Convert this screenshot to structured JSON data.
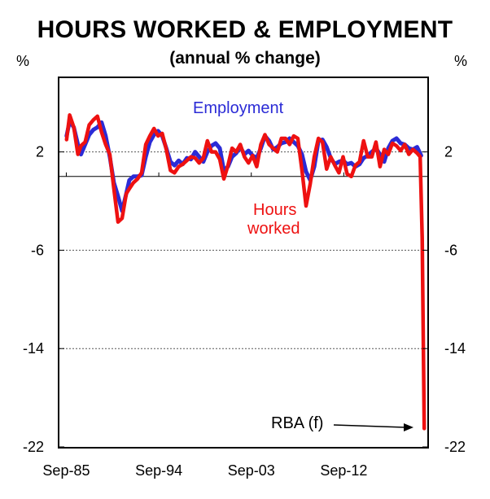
{
  "chart_data": {
    "type": "line",
    "title": "HOURS WORKED & EMPLOYMENT",
    "subtitle": "(annual % change)",
    "ylabel_left": "%",
    "ylabel_right": "%",
    "ylim": [
      -22,
      8
    ],
    "yticks": [
      2,
      -6,
      -14,
      -22
    ],
    "ytick_labels": [
      "2",
      "-6",
      "-14",
      "-22"
    ],
    "xlim": [
      1985.0,
      2020.8
    ],
    "xticks": [
      1985.67,
      1994.67,
      2003.67,
      2012.67
    ],
    "xtick_labels": [
      "Sep-85",
      "Sep-94",
      "Sep-03",
      "Sep-12"
    ],
    "grid": "horizontal dashed",
    "zero_line": 0,
    "series": [
      {
        "name": "Employment",
        "color": "#2b2bd6",
        "x": [
          1985.7,
          1986.0,
          1986.4,
          1986.8,
          1987.1,
          1987.5,
          1987.9,
          1988.3,
          1988.7,
          1989.1,
          1989.5,
          1989.9,
          1990.3,
          1990.7,
          1991.1,
          1991.5,
          1991.8,
          1992.2,
          1992.6,
          1993.0,
          1993.4,
          1993.8,
          1994.2,
          1994.6,
          1995.0,
          1995.4,
          1995.8,
          1996.2,
          1996.6,
          1997.0,
          1997.4,
          1997.8,
          1998.2,
          1998.6,
          1999.0,
          1999.4,
          1999.8,
          2000.2,
          2000.6,
          2001.0,
          2001.4,
          2001.8,
          2002.2,
          2002.6,
          2003.0,
          2003.4,
          2003.8,
          2004.2,
          2004.6,
          2005.0,
          2005.4,
          2005.8,
          2006.2,
          2006.6,
          2007.0,
          2007.4,
          2007.8,
          2008.2,
          2008.6,
          2009.0,
          2009.4,
          2009.8,
          2010.2,
          2010.6,
          2011.0,
          2011.4,
          2011.8,
          2012.2,
          2012.6,
          2013.0,
          2013.4,
          2013.8,
          2014.2,
          2014.6,
          2015.0,
          2015.4,
          2015.8,
          2016.2,
          2016.6,
          2017.0,
          2017.4,
          2017.8,
          2018.2,
          2018.6,
          2019.0,
          2019.4,
          2019.8,
          2020.2
        ],
        "values": [
          3.3,
          4.5,
          4.0,
          2.6,
          1.8,
          2.6,
          3.4,
          3.8,
          4.0,
          4.4,
          3.3,
          1.6,
          -0.5,
          -1.6,
          -2.8,
          -1.4,
          -0.3,
          0.0,
          0.0,
          0.1,
          1.6,
          2.8,
          3.4,
          3.7,
          3.3,
          2.3,
          1.2,
          0.9,
          1.3,
          1.0,
          1.5,
          1.4,
          2.0,
          1.6,
          1.2,
          2.0,
          2.5,
          2.7,
          2.3,
          0.5,
          0.8,
          1.6,
          1.9,
          2.4,
          1.8,
          2.1,
          1.7,
          1.5,
          2.3,
          3.3,
          2.9,
          2.2,
          2.4,
          2.7,
          2.8,
          3.1,
          2.8,
          2.5,
          1.8,
          0.4,
          -0.3,
          0.8,
          2.9,
          3.0,
          2.4,
          1.5,
          1.0,
          1.2,
          1.3,
          1.0,
          1.1,
          0.8,
          1.0,
          1.5,
          1.7,
          2.0,
          2.3,
          1.8,
          1.2,
          2.3,
          2.9,
          3.1,
          2.7,
          2.6,
          2.3,
          2.2,
          2.4,
          1.7
        ]
      },
      {
        "name": "Hours worked",
        "color": "#ee1111",
        "x": [
          1985.7,
          1986.0,
          1986.4,
          1986.8,
          1987.1,
          1987.5,
          1987.9,
          1988.3,
          1988.7,
          1989.1,
          1989.5,
          1989.9,
          1990.3,
          1990.7,
          1991.1,
          1991.5,
          1991.8,
          1992.2,
          1992.6,
          1993.0,
          1993.4,
          1993.8,
          1994.2,
          1994.6,
          1995.0,
          1995.4,
          1995.8,
          1996.2,
          1996.6,
          1997.0,
          1997.4,
          1997.8,
          1998.2,
          1998.6,
          1999.0,
          1999.4,
          1999.8,
          2000.2,
          2000.6,
          2001.0,
          2001.4,
          2001.8,
          2002.2,
          2002.6,
          2003.0,
          2003.4,
          2003.8,
          2004.2,
          2004.6,
          2005.0,
          2005.4,
          2005.8,
          2006.2,
          2006.6,
          2007.0,
          2007.4,
          2007.8,
          2008.2,
          2008.6,
          2009.0,
          2009.4,
          2009.8,
          2010.2,
          2010.6,
          2011.0,
          2011.4,
          2011.8,
          2012.2,
          2012.6,
          2013.0,
          2013.4,
          2013.8,
          2014.2,
          2014.6,
          2015.0,
          2015.4,
          2015.8,
          2016.2,
          2016.6,
          2017.0,
          2017.4,
          2017.8,
          2018.2,
          2018.6,
          2019.0,
          2019.4,
          2019.8,
          2020.1,
          2020.3,
          2020.5
        ],
        "values": [
          3.0,
          5.0,
          4.0,
          1.8,
          2.5,
          2.8,
          4.2,
          4.6,
          4.9,
          3.6,
          2.6,
          1.8,
          -1.0,
          -3.7,
          -3.4,
          -1.4,
          -1.0,
          -0.5,
          -0.2,
          0.3,
          2.6,
          3.3,
          3.9,
          3.3,
          3.5,
          2.2,
          0.5,
          0.3,
          0.8,
          1.0,
          1.3,
          1.6,
          1.5,
          1.1,
          1.5,
          2.9,
          2.0,
          2.0,
          1.4,
          -0.2,
          0.9,
          2.3,
          2.0,
          2.6,
          1.6,
          1.1,
          1.7,
          0.8,
          2.6,
          3.4,
          2.6,
          2.3,
          2.0,
          3.1,
          3.1,
          2.6,
          3.3,
          3.1,
          0.5,
          -2.4,
          -0.6,
          1.6,
          3.1,
          2.8,
          0.6,
          1.6,
          0.9,
          0.3,
          1.6,
          0.2,
          0.0,
          0.9,
          1.2,
          2.9,
          1.6,
          1.6,
          2.8,
          0.8,
          2.2,
          1.8,
          2.7,
          2.5,
          2.1,
          2.6,
          1.8,
          2.2,
          1.9,
          1.6,
          -5.0,
          -20.5
        ]
      }
    ],
    "annotations": [
      {
        "text": "Employment",
        "color": "#2b2bd6"
      },
      {
        "text": "Hours",
        "color": "#ee1111"
      },
      {
        "text": "worked",
        "color": "#ee1111"
      },
      {
        "text": "RBA (f)",
        "color": "#000000"
      }
    ]
  }
}
